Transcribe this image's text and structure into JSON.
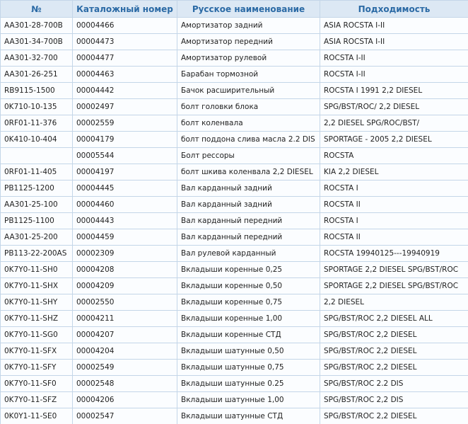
{
  "table": {
    "header": [
      "№",
      "Каталожный номер",
      "Русское наименование",
      "Подходимость"
    ],
    "rows": [
      [
        "AA301-28-700B",
        "00004466",
        "Амортизатор задний",
        "ASIA ROCSTA I-II"
      ],
      [
        "AA301-34-700B",
        "00004473",
        "Амортизатор передний",
        "ASIA ROCSTA I-II"
      ],
      [
        "AA301-32-700",
        "00004477",
        "Амортизатор рулевой",
        "ROCSTA I-II"
      ],
      [
        "AA301-26-251",
        "00004463",
        "Барабан тормозной",
        "ROCSTA I-II"
      ],
      [
        "RB9115-1500",
        "00004442",
        "Бачок расширительный",
        "ROCSTA I 1991 2,2 DIESEL"
      ],
      [
        "0K710-10-135",
        "00002497",
        "болт головки блока",
        "SPG/BST/ROC/ 2,2 DIESEL"
      ],
      [
        "0RF01-11-376",
        "00002559",
        "болт коленвала",
        "2,2 DIESEL SPG/ROC/BST/"
      ],
      [
        "0K410-10-404",
        "00004179",
        "болт поддона слива масла 2.2 DIS",
        "SPORTAGE - 2005 2,2 DIESEL"
      ],
      [
        null,
        "00005544",
        "Болт рессоры",
        "ROCSTA"
      ],
      [
        "0RF01-11-405",
        "00004197",
        "болт шкива коленвала 2,2 DIESEL",
        "KIA 2,2 DIESEL"
      ],
      [
        "PB1125-1200",
        "00004445",
        "Вал карданный задний",
        "ROCSTA I"
      ],
      [
        "AA301-25-100",
        "00004460",
        "Вал карданный задний",
        "ROCSTA II"
      ],
      [
        "PB1125-1100",
        "00004443",
        "Вал карданный передний",
        "ROCSTA I"
      ],
      [
        "AA301-25-200",
        "00004459",
        "Вал карданный передний",
        "ROCSTA II"
      ],
      [
        "PB113-22-200AS",
        "00002309",
        "Вал рулевой карданный",
        "ROCSTA 19940125---19940919"
      ],
      [
        "0K7Y0-11-SH0",
        "00004208",
        "Вкладыши коренные 0,25",
        "SPORTAGE 2,2 DIESEL SPG/BST/ROC"
      ],
      [
        "0K7Y0-11-SHX",
        "00004209",
        "Вкладыши коренные 0,50",
        "SPORTAGE 2,2 DIESEL SPG/BST/ROC"
      ],
      [
        "0K7Y0-11-SHY",
        "00002550",
        "Вкладыши коренные 0,75",
        "2,2 DIESEL"
      ],
      [
        "0K7Y0-11-SHZ",
        "00004211",
        "Вкладыши коренные 1,00",
        "SPG/BST/ROC 2,2 DIESEL ALL"
      ],
      [
        "0K7Y0-11-SG0",
        "00004207",
        "Вкладыши коренные СТД",
        "SPG/BST/ROC 2,2 DIESEL"
      ],
      [
        "0K7Y0-11-SFX",
        "00004204",
        "Вкладыши шатунные 0,50",
        "SPG/BST/ROC 2,2 DIESEL"
      ],
      [
        "0K7Y0-11-SFY",
        "00002549",
        "Вкладыши шатунные 0,75",
        "SPG/BST/ROC 2,2 DIESEL"
      ],
      [
        "0K7Y0-11-SF0",
        "00002548",
        "Вкладыши шатунные 0.25",
        "SPG/BST/ROC 2.2 DIS"
      ],
      [
        "0K7Y0-11-SFZ",
        "00004206",
        "Вкладыши шатунные 1,00",
        "SPG/BST/ROC 2,2 DIS"
      ],
      [
        "0K0Y1-11-SE0",
        "00002547",
        "Вкладыши шатунные СТД",
        "SPG/BST/ROC 2,2 DIESEL"
      ]
    ]
  }
}
